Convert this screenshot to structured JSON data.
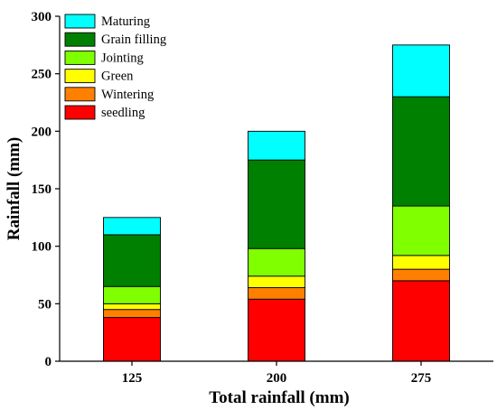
{
  "chart_data": {
    "type": "bar",
    "stacked": true,
    "title": "",
    "xlabel": "Total rainfall (mm)",
    "ylabel": "Rainfall (mm)",
    "categories": [
      "125",
      "200",
      "275"
    ],
    "ylim": [
      0,
      300
    ],
    "yticks": [
      "0",
      "50",
      "100",
      "150",
      "200",
      "250",
      "300"
    ],
    "grid": false,
    "legend_position": "top-left",
    "series": [
      {
        "name": "seedling",
        "color": "#ff0000",
        "values": [
          38,
          54,
          70
        ]
      },
      {
        "name": "Wintering",
        "color": "#ff8000",
        "values": [
          7,
          10,
          10
        ]
      },
      {
        "name": "Green",
        "color": "#ffff00",
        "values": [
          5,
          10,
          12
        ]
      },
      {
        "name": "Jointing",
        "color": "#80ff00",
        "values": [
          15,
          24,
          43
        ]
      },
      {
        "name": "Grain filling",
        "color": "#008000",
        "values": [
          45,
          77,
          95
        ]
      },
      {
        "name": "Maturing",
        "color": "#00ffff",
        "values": [
          15,
          25,
          45
        ]
      }
    ]
  }
}
